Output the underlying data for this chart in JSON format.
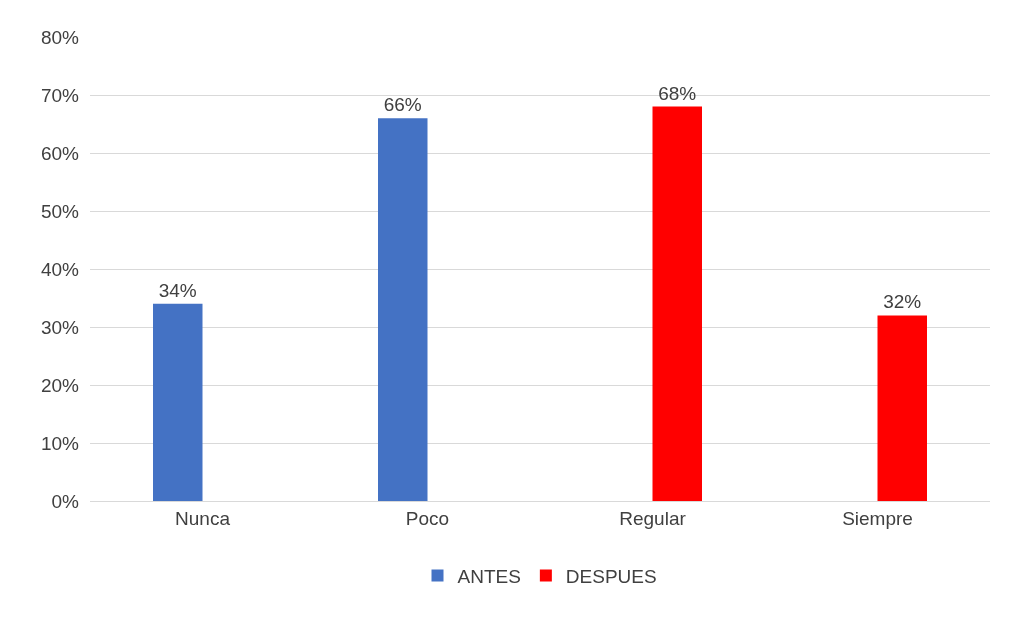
{
  "chart_data": {
    "type": "bar",
    "categories": [
      "Nunca",
      "Poco",
      "Regular",
      "Siempre"
    ],
    "series": [
      {
        "name": "ANTES",
        "color": "#4472c4",
        "values": [
          34,
          66,
          null,
          null
        ],
        "value_labels": [
          "34%",
          "66%",
          null,
          null
        ]
      },
      {
        "name": "DESPUES",
        "color": "#ff0000",
        "values": [
          null,
          null,
          68,
          32
        ],
        "value_labels": [
          null,
          null,
          "68%",
          "32%"
        ]
      }
    ],
    "ylim": [
      0,
      80
    ],
    "yticks": [
      {
        "value": 0,
        "label": "0%"
      },
      {
        "value": 10,
        "label": "10%"
      },
      {
        "value": 20,
        "label": "20%"
      },
      {
        "value": 30,
        "label": "30%"
      },
      {
        "value": 40,
        "label": "40%"
      },
      {
        "value": 50,
        "label": "50%"
      },
      {
        "value": 60,
        "label": "60%"
      },
      {
        "value": 70,
        "label": "70%"
      },
      {
        "value": 80,
        "label": "80%"
      }
    ],
    "grid": "y",
    "legend": "bottom"
  }
}
